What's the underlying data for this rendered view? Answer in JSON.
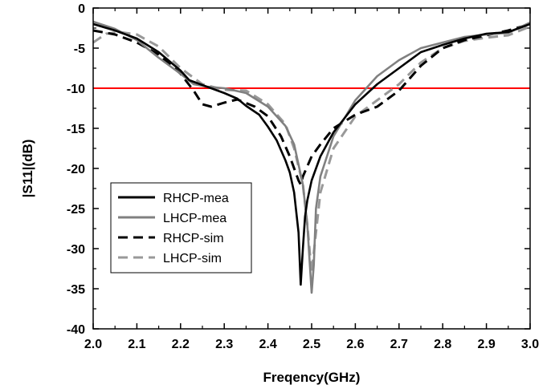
{
  "chart_data": {
    "type": "line",
    "xlabel": "Freqency(GHz)",
    "ylabel": "|S11|(dB)",
    "xlim": [
      2.0,
      3.0
    ],
    "ylim": [
      -40,
      0
    ],
    "xticks": [
      "2.0",
      "2.1",
      "2.2",
      "2.3",
      "2.4",
      "2.5",
      "2.6",
      "2.7",
      "2.8",
      "2.9",
      "3.0"
    ],
    "yticks": [
      "0",
      "-5",
      "-10",
      "-15",
      "-20",
      "-25",
      "-30",
      "-35",
      "-40"
    ],
    "legend_position": "lower-left",
    "reference_line": {
      "y": -10,
      "color": "#ff0000"
    },
    "series": [
      {
        "name": "RHCP-mea",
        "color": "#000000",
        "dash": "solid",
        "points": [
          [
            2.0,
            -2.0
          ],
          [
            2.05,
            -2.8
          ],
          [
            2.1,
            -3.8
          ],
          [
            2.15,
            -5.5
          ],
          [
            2.2,
            -7.8
          ],
          [
            2.22,
            -9.0
          ],
          [
            2.25,
            -9.6
          ],
          [
            2.28,
            -10.2
          ],
          [
            2.3,
            -10.6
          ],
          [
            2.33,
            -11.3
          ],
          [
            2.35,
            -12.2
          ],
          [
            2.38,
            -13.3
          ],
          [
            2.4,
            -14.8
          ],
          [
            2.42,
            -16.5
          ],
          [
            2.44,
            -19.0
          ],
          [
            2.45,
            -20.5
          ],
          [
            2.46,
            -23.0
          ],
          [
            2.47,
            -28.0
          ],
          [
            2.475,
            -34.5
          ],
          [
            2.48,
            -30.0
          ],
          [
            2.485,
            -26.0
          ],
          [
            2.49,
            -24.0
          ],
          [
            2.5,
            -21.5
          ],
          [
            2.52,
            -18.5
          ],
          [
            2.55,
            -15.5
          ],
          [
            2.6,
            -12.0
          ],
          [
            2.65,
            -9.5
          ],
          [
            2.7,
            -7.5
          ],
          [
            2.75,
            -5.5
          ],
          [
            2.8,
            -4.6
          ],
          [
            2.85,
            -3.8
          ],
          [
            2.9,
            -3.2
          ],
          [
            2.95,
            -3.0
          ],
          [
            3.0,
            -2.0
          ]
        ]
      },
      {
        "name": "LHCP-mea",
        "color": "#808080",
        "dash": "solid",
        "points": [
          [
            2.0,
            -1.7
          ],
          [
            2.05,
            -2.6
          ],
          [
            2.1,
            -4.0
          ],
          [
            2.15,
            -6.2
          ],
          [
            2.2,
            -8.2
          ],
          [
            2.23,
            -9.5
          ],
          [
            2.26,
            -9.8
          ],
          [
            2.3,
            -10.0
          ],
          [
            2.35,
            -10.6
          ],
          [
            2.4,
            -12.3
          ],
          [
            2.44,
            -14.7
          ],
          [
            2.46,
            -17.0
          ],
          [
            2.48,
            -22.0
          ],
          [
            2.49,
            -27.0
          ],
          [
            2.5,
            -35.5
          ],
          [
            2.505,
            -32.0
          ],
          [
            2.51,
            -25.0
          ],
          [
            2.52,
            -21.0
          ],
          [
            2.55,
            -16.0
          ],
          [
            2.6,
            -11.5
          ],
          [
            2.65,
            -8.5
          ],
          [
            2.7,
            -6.5
          ],
          [
            2.75,
            -5.0
          ],
          [
            2.8,
            -4.3
          ],
          [
            2.85,
            -3.6
          ],
          [
            2.9,
            -3.3
          ],
          [
            2.95,
            -3.1
          ],
          [
            3.0,
            -1.8
          ]
        ]
      },
      {
        "name": "RHCP-sim",
        "color": "#000000",
        "dash": "dashed",
        "points": [
          [
            2.0,
            -2.8
          ],
          [
            2.05,
            -3.3
          ],
          [
            2.1,
            -4.3
          ],
          [
            2.15,
            -5.8
          ],
          [
            2.2,
            -8.2
          ],
          [
            2.23,
            -10.3
          ],
          [
            2.25,
            -12.0
          ],
          [
            2.27,
            -12.3
          ],
          [
            2.3,
            -11.8
          ],
          [
            2.33,
            -11.4
          ],
          [
            2.37,
            -12.3
          ],
          [
            2.4,
            -13.5
          ],
          [
            2.43,
            -16.0
          ],
          [
            2.45,
            -18.5
          ],
          [
            2.47,
            -21.5
          ],
          [
            2.475,
            -22.0
          ],
          [
            2.48,
            -21.0
          ],
          [
            2.5,
            -18.5
          ],
          [
            2.52,
            -17.0
          ],
          [
            2.55,
            -15.0
          ],
          [
            2.6,
            -13.3
          ],
          [
            2.65,
            -12.3
          ],
          [
            2.7,
            -10.3
          ],
          [
            2.75,
            -7.2
          ],
          [
            2.8,
            -5.0
          ],
          [
            2.85,
            -4.0
          ],
          [
            2.9,
            -3.4
          ],
          [
            2.95,
            -2.8
          ],
          [
            3.0,
            -2.0
          ]
        ]
      },
      {
        "name": "LHCP-sim",
        "color": "#999999",
        "dash": "dashed",
        "points": [
          [
            2.0,
            -4.3
          ],
          [
            2.03,
            -3.2
          ],
          [
            2.06,
            -3.0
          ],
          [
            2.1,
            -3.3
          ],
          [
            2.15,
            -4.8
          ],
          [
            2.2,
            -7.5
          ],
          [
            2.25,
            -9.5
          ],
          [
            2.3,
            -10.2
          ],
          [
            2.35,
            -10.3
          ],
          [
            2.4,
            -12.0
          ],
          [
            2.44,
            -14.5
          ],
          [
            2.46,
            -17.5
          ],
          [
            2.48,
            -22.0
          ],
          [
            2.49,
            -27.0
          ],
          [
            2.5,
            -33.0
          ],
          [
            2.51,
            -28.0
          ],
          [
            2.52,
            -23.0
          ],
          [
            2.55,
            -17.5
          ],
          [
            2.6,
            -13.5
          ],
          [
            2.65,
            -11.5
          ],
          [
            2.7,
            -9.5
          ],
          [
            2.75,
            -6.8
          ],
          [
            2.8,
            -5.0
          ],
          [
            2.85,
            -4.1
          ],
          [
            2.9,
            -3.7
          ],
          [
            2.95,
            -3.4
          ],
          [
            3.0,
            -2.3
          ]
        ]
      }
    ]
  }
}
